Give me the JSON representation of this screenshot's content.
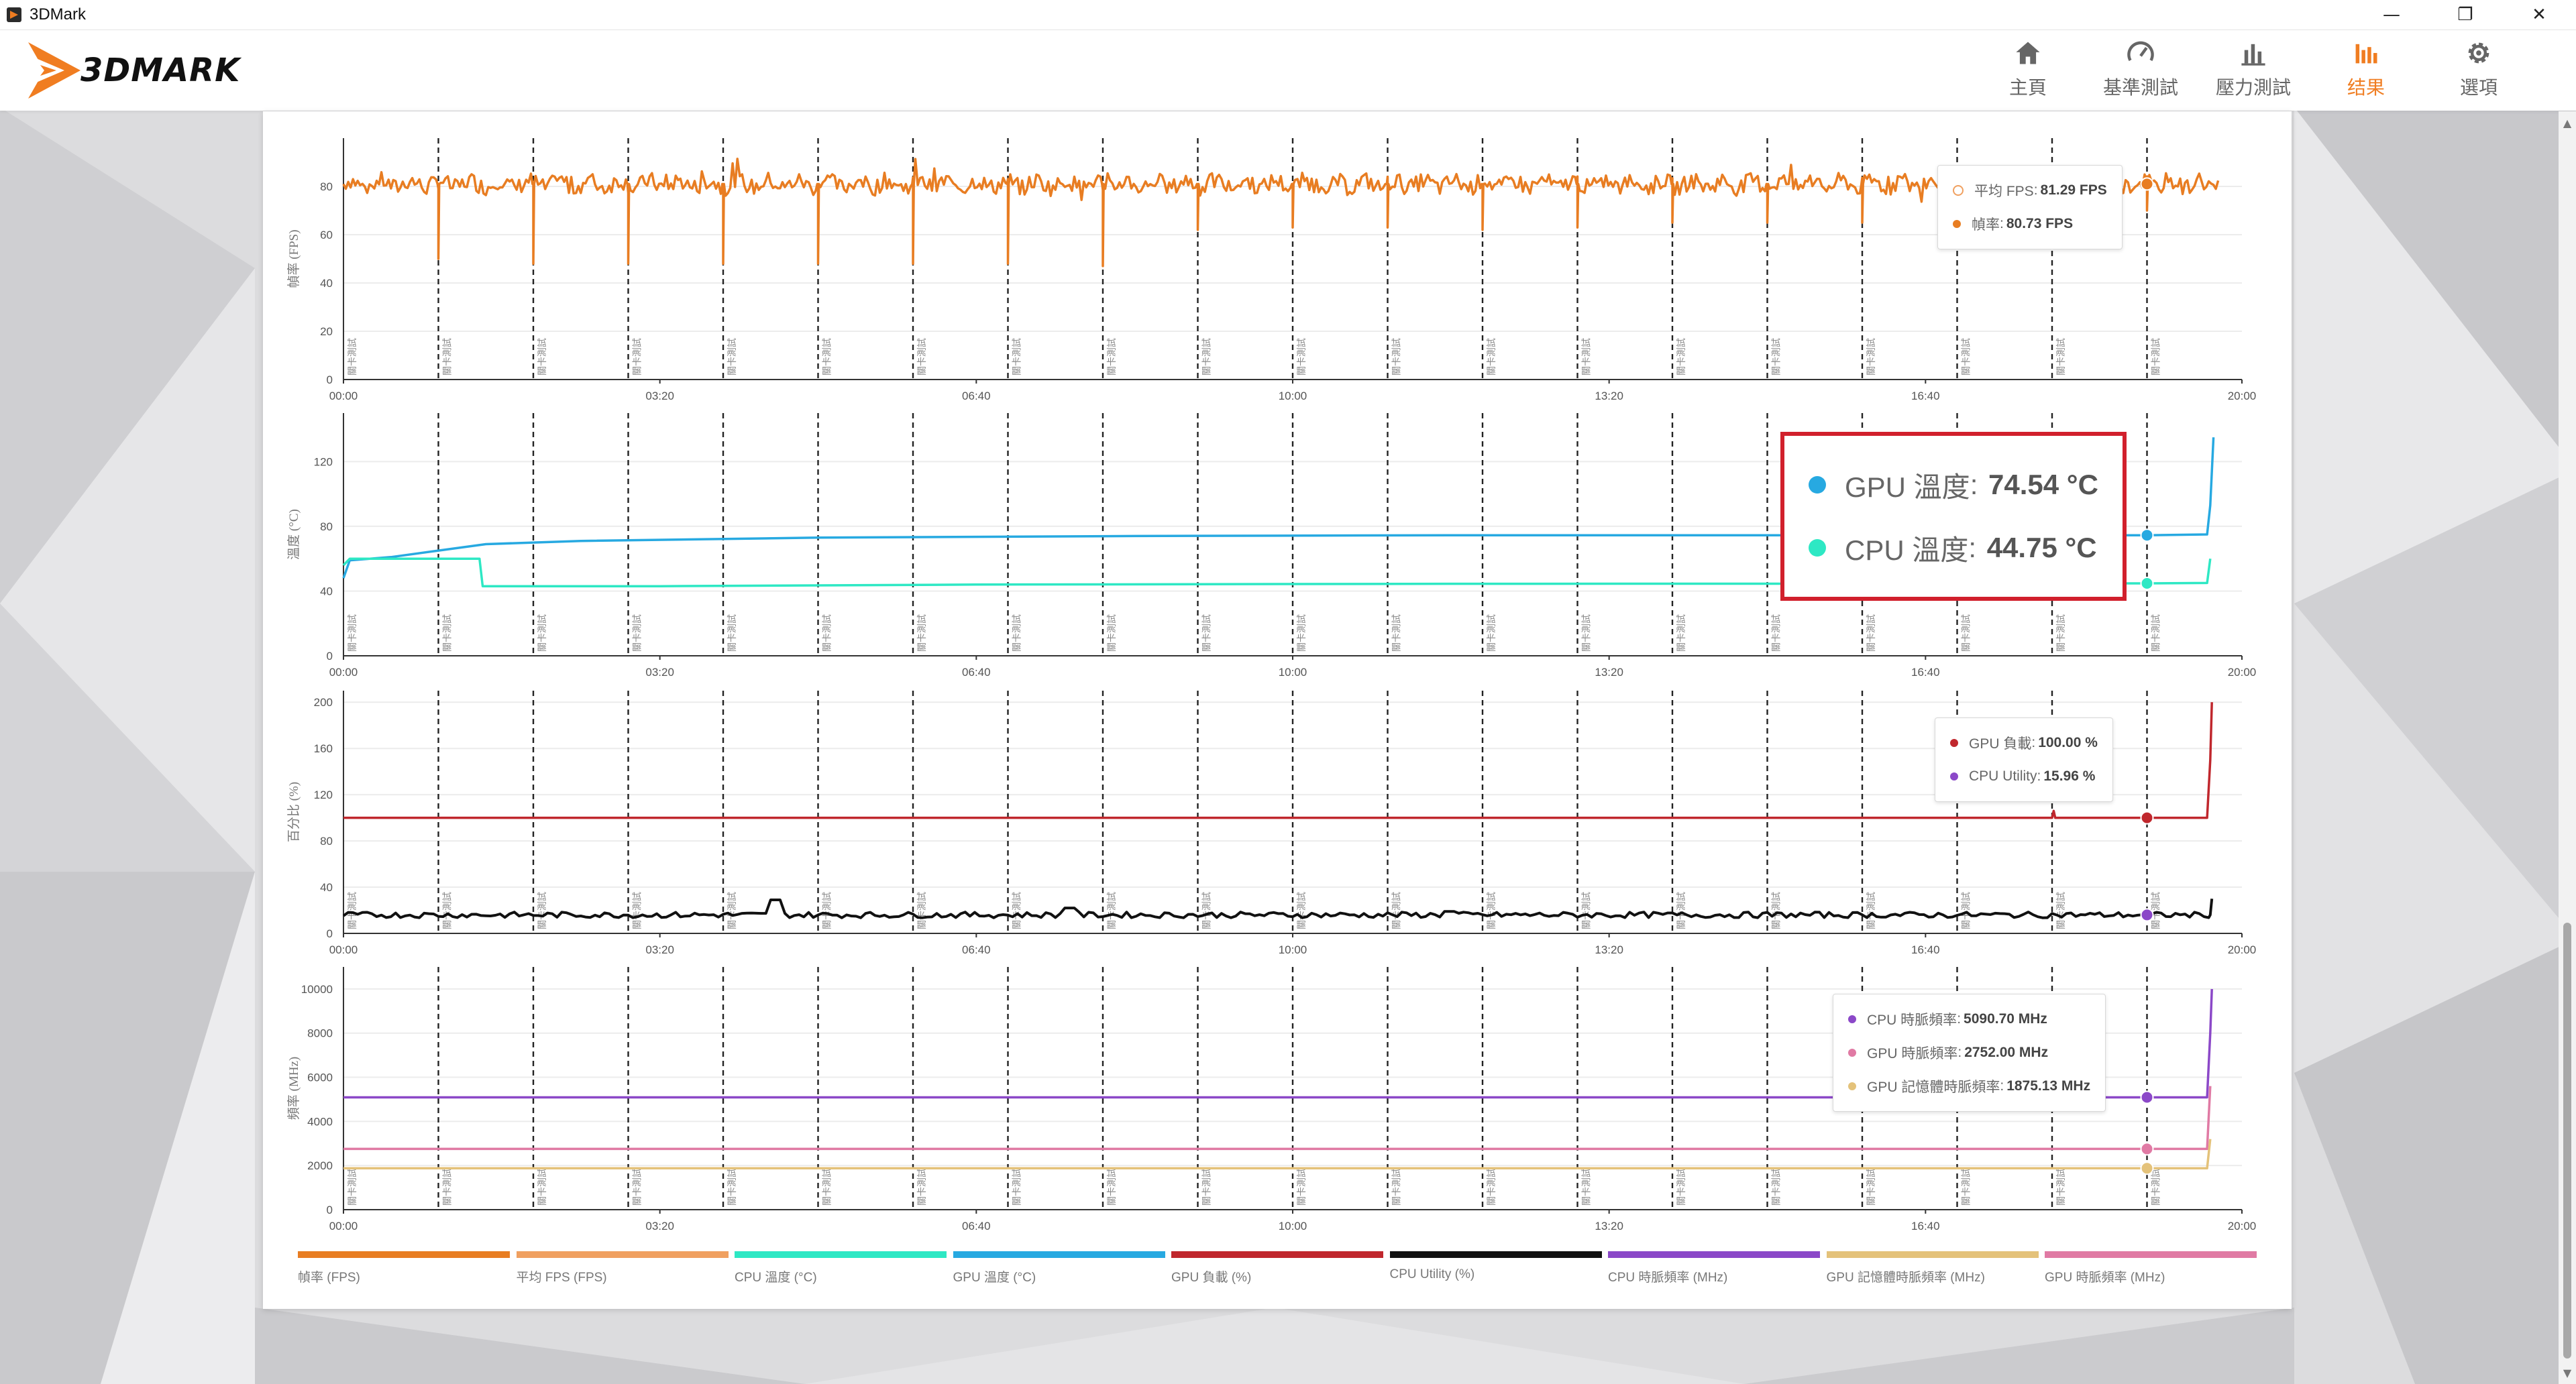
{
  "window": {
    "title": "3DMark",
    "icon": "3dmark-app-icon",
    "controls": {
      "minimize": "—",
      "maximize": "❐",
      "close": "✕"
    }
  },
  "header": {
    "logo_text": "3DMARK",
    "nav": [
      {
        "label": "主頁",
        "icon": "home-icon",
        "active": false
      },
      {
        "label": "基準測試",
        "icon": "gauge-icon",
        "active": false
      },
      {
        "label": "壓力測試",
        "icon": "bar-chart-icon",
        "active": false
      },
      {
        "label": "结果",
        "icon": "results-chart-icon",
        "active": true
      },
      {
        "label": "選項",
        "icon": "gear-icon",
        "active": false
      }
    ]
  },
  "colors": {
    "accent": "#f07d21",
    "fps": "#e87d22",
    "avg_fps": "#f0a060",
    "cpu_temp": "#2ee8c4",
    "gpu_temp": "#27a9e1",
    "gpu_load": "#c0272d",
    "cpu_utility": "#111111",
    "cpu_clock": "#8b48c8",
    "gpu_mem_clock": "#e4c27a",
    "gpu_clock": "#e07aa4",
    "highlight_border": "#d1202c"
  },
  "marker_label": "關卡測試",
  "chart_data": [
    {
      "type": "line",
      "ylabel": "幀率 (FPS)",
      "ylim": [
        0,
        100
      ],
      "yticks": [
        0,
        20,
        40,
        60,
        80
      ],
      "xlim": [
        0,
        1200
      ],
      "xticks": [
        "00:00",
        "03:20",
        "06:40",
        "10:00",
        "13:20",
        "16:40",
        "20:00"
      ],
      "markers_s": [
        0,
        60,
        120,
        180,
        240,
        300,
        360,
        420,
        480,
        540,
        600,
        660,
        720,
        780,
        840,
        900,
        960,
        1020,
        1080,
        1140
      ],
      "series": [
        {
          "name": "幀率 (FPS)",
          "color": "fps",
          "kind": "fps_noisy",
          "base": 81,
          "dips": [
            60,
            120,
            180,
            240,
            300,
            360,
            420,
            480,
            540,
            600,
            660,
            720,
            780,
            840,
            900,
            960,
            1020,
            1080,
            1140
          ],
          "dip_values": [
            50,
            48,
            48,
            48,
            48,
            48,
            48,
            47,
            62,
            63,
            63,
            62,
            63,
            65,
            65,
            65,
            66,
            66,
            70
          ],
          "end_s": 1185
        }
      ],
      "cursor_s": 1140,
      "tooltip": [
        {
          "label": "平均 FPS",
          "value": "81.29 FPS",
          "color": "avg_fps",
          "hollow": true
        },
        {
          "label": "幀率",
          "value": "80.73 FPS",
          "color": "fps"
        }
      ]
    },
    {
      "type": "line",
      "ylabel": "溫度 (°C)",
      "ylim": [
        0,
        150
      ],
      "yticks": [
        0,
        40,
        80,
        120
      ],
      "xlim": [
        0,
        1200
      ],
      "xticks": [
        "00:00",
        "03:20",
        "06:40",
        "10:00",
        "13:20",
        "16:40",
        "20:00"
      ],
      "markers_s": [
        0,
        60,
        120,
        180,
        240,
        300,
        360,
        420,
        480,
        540,
        600,
        660,
        720,
        780,
        840,
        900,
        960,
        1020,
        1080,
        1140
      ],
      "series": [
        {
          "name": "GPU 溫度 (°C)",
          "color": "gpu_temp",
          "points": [
            [
              0,
              48
            ],
            [
              4,
              59
            ],
            [
              30,
              61
            ],
            [
              60,
              65
            ],
            [
              90,
              69
            ],
            [
              150,
              71
            ],
            [
              300,
              73
            ],
            [
              500,
              74
            ],
            [
              700,
              74.5
            ],
            [
              900,
              74.5
            ],
            [
              1100,
              74.5
            ],
            [
              1140,
              74.5
            ],
            [
              1178,
              75
            ],
            [
              1180,
              93
            ],
            [
              1182,
              135
            ],
            [
              1182,
              135
            ]
          ]
        },
        {
          "name": "CPU 溫度 (°C)",
          "color": "cpu_temp",
          "points": [
            [
              0,
              56
            ],
            [
              4,
              60
            ],
            [
              86,
              60
            ],
            [
              88,
              43
            ],
            [
              200,
              43
            ],
            [
              400,
              44
            ],
            [
              700,
              44.5
            ],
            [
              1000,
              44.6
            ],
            [
              1140,
              44.75
            ],
            [
              1178,
              45
            ],
            [
              1180,
              60
            ]
          ]
        }
      ],
      "cursor_s": 1140
    },
    {
      "type": "line",
      "ylabel": "百分比 (%)",
      "ylim": [
        0,
        210
      ],
      "yticks": [
        0,
        40,
        80,
        120,
        160,
        200
      ],
      "xlim": [
        0,
        1200
      ],
      "xticks": [
        "00:00",
        "03:20",
        "06:40",
        "10:00",
        "13:20",
        "16:40",
        "20:00"
      ],
      "markers_s": [
        0,
        60,
        120,
        180,
        240,
        300,
        360,
        420,
        480,
        540,
        600,
        660,
        720,
        780,
        840,
        900,
        960,
        1020,
        1080,
        1140
      ],
      "series": [
        {
          "name": "GPU 負載 (%)",
          "color": "gpu_load",
          "points": [
            [
              0,
              100
            ],
            [
              1080,
              100
            ],
            [
              1081,
              106
            ],
            [
              1082,
              100
            ],
            [
              1178,
              100
            ],
            [
              1180,
              150
            ],
            [
              1181,
              200
            ]
          ]
        },
        {
          "name": "CPU Utility (%)",
          "color": "cpu_utility",
          "kind": "cpu_noisy",
          "base": 16,
          "spikes": [
            [
              272,
              29
            ],
            [
              460,
              22
            ],
            [
              700,
              19
            ]
          ],
          "end_s": 1181,
          "end_value": 30
        }
      ],
      "cursor_s": 1140,
      "tooltip": [
        {
          "label": "GPU 負載",
          "value": "100.00 %",
          "color": "gpu_load"
        },
        {
          "label": "CPU Utility",
          "value": "15.96 %",
          "color": "cpu_clock"
        }
      ]
    },
    {
      "type": "line",
      "ylabel": "頻率 (MHz)",
      "ylim": [
        0,
        11000
      ],
      "yticks": [
        0,
        2000,
        4000,
        6000,
        8000,
        10000
      ],
      "xlim": [
        0,
        1200
      ],
      "xticks": [
        "00:00",
        "03:20",
        "06:40",
        "10:00",
        "13:20",
        "16:40",
        "20:00"
      ],
      "markers_s": [
        0,
        60,
        120,
        180,
        240,
        300,
        360,
        420,
        480,
        540,
        600,
        660,
        720,
        780,
        840,
        900,
        960,
        1020,
        1080,
        1140
      ],
      "series": [
        {
          "name": "CPU 時脈頻率 (MHz)",
          "color": "cpu_clock",
          "points": [
            [
              0,
              5090
            ],
            [
              1178,
              5090
            ],
            [
              1180,
              8000
            ],
            [
              1181,
              10000
            ]
          ]
        },
        {
          "name": "GPU 時脈頻率 (MHz)",
          "color": "gpu_clock",
          "points": [
            [
              0,
              2752
            ],
            [
              1178,
              2752
            ],
            [
              1180,
              5600
            ]
          ]
        },
        {
          "name": "GPU 記憶體時脈頻率 (MHz)",
          "color": "gpu_mem_clock",
          "points": [
            [
              0,
              1875
            ],
            [
              1178,
              1875
            ],
            [
              1180,
              3200
            ]
          ]
        }
      ],
      "cursor_s": 1140,
      "tooltip": [
        {
          "label": "CPU 時脈頻率",
          "value": "5090.70 MHz",
          "color": "cpu_clock"
        },
        {
          "label": "GPU 時脈頻率",
          "value": "2752.00 MHz",
          "color": "gpu_clock"
        },
        {
          "label": "GPU 記憶體時脈頻率",
          "value": "1875.13 MHz",
          "color": "gpu_mem_clock"
        }
      ]
    }
  ],
  "highlight_tooltip": [
    {
      "label": "GPU 溫度",
      "value": "74.54 °C",
      "color": "gpu_temp"
    },
    {
      "label": "CPU 溫度",
      "value": "44.75 °C",
      "color": "cpu_temp"
    }
  ],
  "legend": [
    {
      "label": "幀率 (FPS)",
      "color": "fps"
    },
    {
      "label": "平均 FPS (FPS)",
      "color": "avg_fps"
    },
    {
      "label": "CPU 溫度 (°C)",
      "color": "cpu_temp"
    },
    {
      "label": "GPU 溫度 (°C)",
      "color": "gpu_temp"
    },
    {
      "label": "GPU 負載 (%)",
      "color": "gpu_load"
    },
    {
      "label": "CPU Utility (%)",
      "color": "cpu_utility"
    },
    {
      "label": "CPU 時脈頻率 (MHz)",
      "color": "cpu_clock"
    },
    {
      "label": "GPU 記憶體時脈頻率 (MHz)",
      "color": "gpu_mem_clock"
    },
    {
      "label": "GPU 時脈頻率 (MHz)",
      "color": "gpu_clock"
    }
  ]
}
